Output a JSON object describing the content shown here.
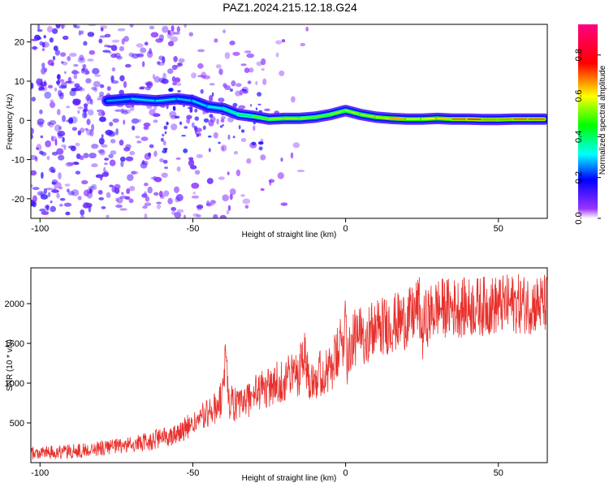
{
  "title": "PAZ1.2024.215.12.18.G24",
  "chart_data": [
    {
      "type": "heatmap",
      "xlabel": "Height of straight line (km)",
      "ylabel": "Frequency (Hz)",
      "xlim": [
        -103,
        66
      ],
      "ylim": [
        -25,
        24.5
      ],
      "xticks": [
        -100,
        -50,
        0,
        50
      ],
      "yticks": [
        -20,
        -10,
        0,
        10,
        20
      ],
      "colorbar": {
        "label": "Normalized spectral amplitude",
        "range": [
          0,
          0.95
        ],
        "ticks": [
          0.0,
          0.2,
          0.4,
          0.6,
          0.8
        ],
        "tick_labels": [
          "0.0",
          "0.2",
          "0.4",
          "0.6",
          "0.8"
        ]
      },
      "ridge": [
        {
          "x": -78,
          "y": 5,
          "v": 0.25
        },
        {
          "x": -70,
          "y": 5.5,
          "v": 0.3
        },
        {
          "x": -62,
          "y": 5,
          "v": 0.3
        },
        {
          "x": -55,
          "y": 5.5,
          "v": 0.3
        },
        {
          "x": -50,
          "y": 5,
          "v": 0.28
        },
        {
          "x": -45,
          "y": 3.5,
          "v": 0.32
        },
        {
          "x": -40,
          "y": 3,
          "v": 0.35
        },
        {
          "x": -35,
          "y": 1.5,
          "v": 0.4
        },
        {
          "x": -30,
          "y": 1,
          "v": 0.45
        },
        {
          "x": -25,
          "y": 0.3,
          "v": 0.55
        },
        {
          "x": -20,
          "y": 0.5,
          "v": 0.5
        },
        {
          "x": -15,
          "y": 0.5,
          "v": 0.55
        },
        {
          "x": -10,
          "y": 0.8,
          "v": 0.5
        },
        {
          "x": -5,
          "y": 1.5,
          "v": 0.5
        },
        {
          "x": 0,
          "y": 2.5,
          "v": 0.55
        },
        {
          "x": 5,
          "y": 1.5,
          "v": 0.55
        },
        {
          "x": 10,
          "y": 0.8,
          "v": 0.55
        },
        {
          "x": 15,
          "y": 0.5,
          "v": 0.7
        },
        {
          "x": 20,
          "y": 0.3,
          "v": 0.6
        },
        {
          "x": 25,
          "y": 0.3,
          "v": 0.6
        },
        {
          "x": 30,
          "y": 0.5,
          "v": 0.6
        },
        {
          "x": 35,
          "y": 0.3,
          "v": 0.65
        },
        {
          "x": 40,
          "y": 0.3,
          "v": 0.75
        },
        {
          "x": 45,
          "y": 0.2,
          "v": 0.7
        },
        {
          "x": 50,
          "y": 0.2,
          "v": 0.65
        },
        {
          "x": 55,
          "y": 0.3,
          "v": 0.7
        },
        {
          "x": 60,
          "y": 0.3,
          "v": 0.7
        },
        {
          "x": 65,
          "y": 0.3,
          "v": 0.7
        }
      ]
    },
    {
      "type": "line",
      "xlabel": "Height of straight line (km)",
      "ylabel": "SNR (10 * v/v)",
      "xlim": [
        -103,
        66
      ],
      "ylim": [
        0,
        2450
      ],
      "xticks": [
        -100,
        -50,
        0,
        50
      ],
      "yticks": [
        500,
        1000,
        1500,
        2000
      ],
      "color": "#e8302c",
      "series": [
        {
          "x": [
            -103,
            -95,
            -90,
            -85,
            -80,
            -75,
            -70,
            -65,
            -60,
            -55,
            -50,
            -45,
            -42,
            -40,
            -39.5,
            -38,
            -35,
            -32,
            -30,
            -25,
            -20,
            -15,
            -14,
            -12,
            -10,
            -5,
            -1,
            0,
            0.5,
            1,
            2,
            5,
            10,
            15,
            20,
            22,
            24,
            25,
            26,
            30,
            35,
            40,
            45,
            50,
            55,
            60,
            66
          ],
          "y": [
            120,
            130,
            140,
            160,
            180,
            200,
            230,
            260,
            310,
            380,
            480,
            620,
            700,
            860,
            1350,
            780,
            700,
            800,
            860,
            950,
            1050,
            1150,
            1450,
            1100,
            1100,
            1150,
            1500,
            1900,
            1300,
            1450,
            1520,
            1600,
            1680,
            1750,
            1800,
            1850,
            2000,
            1600,
            1800,
            1950,
            1950,
            1950,
            1970,
            1980,
            2000,
            1990,
            2000
          ]
        }
      ]
    }
  ]
}
